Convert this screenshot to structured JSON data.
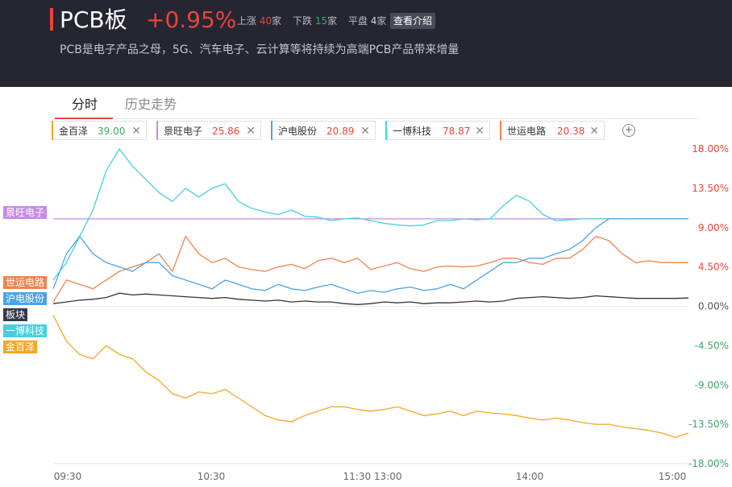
{
  "header": {
    "title": "PCB板",
    "change": "+0.95%",
    "stats": [
      {
        "label": "上涨",
        "count": "40",
        "unit": "家"
      },
      {
        "label": "下跌",
        "count": "15",
        "unit": "家"
      },
      {
        "label": "平盘",
        "count": "4",
        "unit": "家"
      }
    ],
    "intro_label": "查看介绍",
    "description": "PCB是电子产品之母，5G、汽车电子、云计算等将持续为高端PCB产品带来增量"
  },
  "tabs": [
    "分时",
    "历史走势"
  ],
  "compare_chips": [
    {
      "name": "金百泽",
      "price": "39.00",
      "color": "#f5a623"
    },
    {
      "name": "景旺电子",
      "price": "25.86",
      "color": "#c68be8"
    },
    {
      "name": "沪电股份",
      "price": "20.89",
      "color": "#4aa3e8"
    },
    {
      "name": "一博科技",
      "price": "78.87",
      "color": "#46cfe0"
    },
    {
      "name": "世运电路",
      "price": "20.38",
      "color": "#f0834e"
    }
  ],
  "add_icon": "plus-circle-icon",
  "chart_data": {
    "type": "line",
    "x_ticks": [
      "09:30",
      "10:30",
      "11:30 13:00",
      "14:00",
      "15:00"
    ],
    "y_ticks": [
      "18.00%",
      "13.50%",
      "9.00%",
      "4.50%",
      "0.00%",
      "-4.50%",
      "-9.00%",
      "-13.50%",
      "-18.00%"
    ],
    "ylim": [
      -18,
      18
    ],
    "series": [
      {
        "name": "景旺电子",
        "color": "#c68be8",
        "values": [
          10.0,
          10.0,
          10.0,
          10.0,
          10.0,
          10.0,
          10.0,
          10.0,
          10.0,
          10.0,
          10.0,
          10.0,
          10.0,
          10.0,
          10.0,
          10.0,
          10.0,
          10.0,
          10.0,
          10.0,
          10.0,
          10.0,
          10.0,
          10.0,
          10.0,
          10.0,
          10.0,
          10.0,
          10.0,
          10.0,
          10.0,
          10.0,
          10.0,
          10.0,
          10.0,
          10.0,
          10.0,
          10.0,
          10.0,
          10.0,
          10.0,
          10.0,
          10.0,
          10.0,
          10.0,
          10.0,
          10.0,
          10.0,
          10.0
        ]
      },
      {
        "name": "一博科技",
        "color": "#46cfe0",
        "values": [
          3.0,
          5.0,
          8.0,
          11.0,
          15.5,
          18.0,
          16.0,
          14.5,
          13.0,
          12.0,
          13.5,
          12.5,
          13.5,
          14.0,
          12.0,
          11.2,
          10.8,
          10.5,
          11.0,
          10.3,
          10.2,
          9.8,
          10.0,
          10.1,
          9.8,
          9.5,
          9.3,
          9.2,
          9.3,
          9.8,
          9.8,
          10.0,
          9.9,
          10.0,
          11.5,
          12.7,
          12.0,
          10.5,
          9.8,
          9.9,
          10.0,
          10.0,
          10.0,
          10.0,
          10.0,
          10.0,
          10.0,
          10.0,
          10.0
        ]
      },
      {
        "name": "世运电路",
        "color": "#f0834e",
        "values": [
          0.5,
          3.0,
          2.5,
          2.0,
          3.0,
          4.0,
          4.5,
          5.0,
          6.0,
          4.0,
          8.0,
          6.0,
          5.0,
          5.5,
          4.5,
          4.2,
          4.0,
          4.5,
          4.8,
          4.3,
          5.2,
          5.5,
          5.0,
          5.5,
          4.2,
          4.6,
          5.0,
          4.3,
          4.0,
          4.5,
          4.6,
          4.5,
          4.6,
          5.0,
          5.5,
          5.5,
          5.0,
          4.8,
          5.5,
          5.5,
          6.5,
          8.0,
          7.5,
          6.0,
          5.0,
          5.2,
          5.0,
          5.0,
          5.0
        ]
      },
      {
        "name": "沪电股份",
        "color": "#4aa3e8",
        "values": [
          2.0,
          6.0,
          8.0,
          6.0,
          5.0,
          4.5,
          4.0,
          5.0,
          5.0,
          3.5,
          3.0,
          2.5,
          2.0,
          3.0,
          2.5,
          2.0,
          1.8,
          2.5,
          2.0,
          1.8,
          2.2,
          2.5,
          2.0,
          1.5,
          1.8,
          1.6,
          2.0,
          2.2,
          1.8,
          2.0,
          2.5,
          2.0,
          3.0,
          4.0,
          5.0,
          5.0,
          5.5,
          5.5,
          6.0,
          6.5,
          7.5,
          9.0,
          10.0,
          10.0,
          10.0,
          10.0,
          10.0,
          10.0,
          10.0
        ]
      },
      {
        "name": "板块",
        "color": "#333333",
        "values": [
          0.3,
          0.5,
          0.7,
          0.8,
          1.0,
          1.5,
          1.3,
          1.4,
          1.3,
          1.2,
          1.1,
          1.0,
          0.9,
          1.0,
          0.8,
          0.7,
          0.6,
          0.7,
          0.5,
          0.6,
          0.5,
          0.5,
          0.3,
          0.2,
          0.3,
          0.5,
          0.4,
          0.5,
          0.3,
          0.4,
          0.4,
          0.5,
          0.6,
          0.5,
          0.6,
          0.9,
          1.0,
          1.1,
          1.0,
          0.9,
          1.0,
          1.2,
          1.1,
          1.0,
          0.9,
          0.9,
          0.9,
          0.9,
          0.95
        ]
      },
      {
        "name": "金百泽",
        "color": "#f5a623",
        "values": [
          -1.0,
          -4.0,
          -5.5,
          -6.0,
          -4.5,
          -5.5,
          -6.0,
          -7.5,
          -8.5,
          -10.0,
          -10.5,
          -9.8,
          -10.0,
          -9.5,
          -10.5,
          -11.5,
          -12.5,
          -13.0,
          -13.2,
          -12.5,
          -12.0,
          -11.5,
          -11.5,
          -11.8,
          -12.0,
          -11.8,
          -11.5,
          -12.0,
          -12.5,
          -12.3,
          -12.0,
          -12.5,
          -12.0,
          -12.2,
          -12.3,
          -12.5,
          -12.8,
          -13.0,
          -12.8,
          -13.0,
          -13.3,
          -13.5,
          -13.5,
          -13.8,
          -14.0,
          -14.2,
          -14.5,
          -15.0,
          -14.5
        ]
      }
    ],
    "legend_tags": [
      {
        "name": "景旺电子",
        "color": "#c68be8"
      },
      {
        "name": "世运电路",
        "color": "#f0834e"
      },
      {
        "name": "沪电股份",
        "color": "#4aa3e8"
      },
      {
        "name": "板块",
        "color": "#333a4a"
      },
      {
        "name": "一博科技",
        "color": "#46cfe0"
      },
      {
        "name": "金百泽",
        "color": "#f5a623"
      }
    ]
  }
}
